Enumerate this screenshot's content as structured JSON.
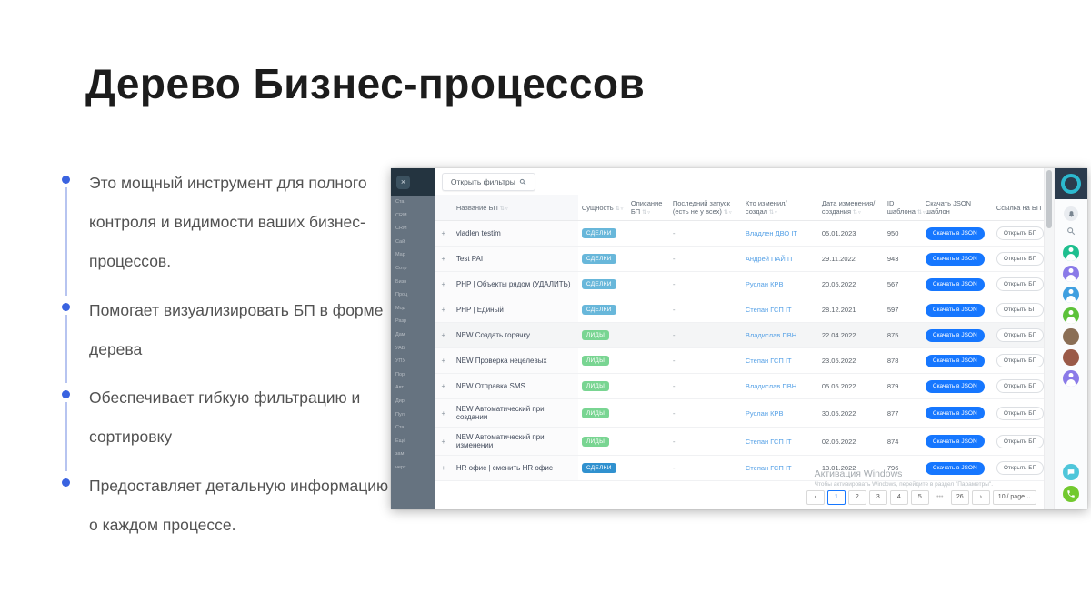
{
  "slide": {
    "title": "Дерево Бизнес-процессов",
    "accent_color": "#3a63e0",
    "bullets": [
      "Это мощный инструмент для полного контроля и видимости ваших бизнес-процессов.",
      "Помогает визуализировать БП в форме дерева",
      "Обеспечивает гибкую фильтрацию и сортировку",
      "Предоставляет детальную информацию о каждом процессе."
    ]
  },
  "app": {
    "filter_button": "Открыть фильтры",
    "icons": {
      "sort": "⇅",
      "filter": "▿",
      "page_size_caret": "⌄",
      "expand": "+",
      "app_menu": "×"
    },
    "sidebar_fragments": [
      "Ста",
      "CRM",
      "CRM",
      "Сай",
      "Мар",
      "Сотр",
      "Бизн",
      "Проц",
      "Мод",
      "Разр",
      "Дам",
      "УАБ",
      "УПУ",
      "Пор",
      "Авт",
      "Дир",
      "Пул",
      "Ста",
      "Ещё",
      "зам",
      "черт"
    ],
    "table": {
      "columns": [
        "Название БП",
        "Сущность",
        "Описание БП",
        "Последний запуск (есть не у всех)",
        "Кто изменил/ создал",
        "Дата изменения/ создания",
        "ID шаблона",
        "Скачать JSON шаблон",
        "Ссылка на БП"
      ],
      "download_label": "Скачать в JSON",
      "open_label": "Открыть БП",
      "badge_colors": {
        "deal": "#68b7da",
        "lead": "#79d592",
        "deal-dark": "#3091cf"
      },
      "rows": [
        {
          "name": "vladlen testim",
          "entity": "СДЕЛКИ",
          "type": "deal",
          "last_run": "-",
          "author": "Владлен ДВО IT",
          "date": "05.01.2023",
          "id": "950"
        },
        {
          "name": "Test PAI",
          "entity": "СДЕЛКИ",
          "type": "deal",
          "last_run": "-",
          "author": "Андрей ПАЙ IT",
          "date": "29.11.2022",
          "id": "943"
        },
        {
          "name": "PHP | Объекты рядом (УДАЛИТЬ)",
          "entity": "СДЕЛКИ",
          "type": "deal",
          "last_run": "-",
          "author": "Руслан КРВ",
          "date": "20.05.2022",
          "id": "567"
        },
        {
          "name": "PHP | Единый",
          "entity": "СДЕЛКИ",
          "type": "deal",
          "last_run": "-",
          "author": "Степан ГСП IT",
          "date": "28.12.2021",
          "id": "597"
        },
        {
          "name": "NEW Создать горячку",
          "entity": "ЛИДЫ",
          "type": "lead",
          "last_run": "-",
          "author": "Владислав ПВН",
          "date": "22.04.2022",
          "id": "875",
          "highlight": true
        },
        {
          "name": "NEW Проверка нецелевых",
          "entity": "ЛИДЫ",
          "type": "lead",
          "last_run": "-",
          "author": "Степан ГСП IT",
          "date": "23.05.2022",
          "id": "878"
        },
        {
          "name": "NEW Отправка SMS",
          "entity": "ЛИДЫ",
          "type": "lead",
          "last_run": "-",
          "author": "Владислав ПВН",
          "date": "05.05.2022",
          "id": "879"
        },
        {
          "name": "NEW Автоматический при создании",
          "entity": "ЛИДЫ",
          "type": "lead",
          "last_run": "-",
          "author": "Руслан КРВ",
          "date": "30.05.2022",
          "id": "877"
        },
        {
          "name": "NEW Автоматический при изменении",
          "entity": "ЛИДЫ",
          "type": "lead",
          "last_run": "-",
          "author": "Степан ГСП IT",
          "date": "02.06.2022",
          "id": "874"
        },
        {
          "name": "HR офис | сменить HR офис",
          "entity": "СДЕЛКИ",
          "type": "deal-dark",
          "last_run": "-",
          "author": "Степан ГСП IT",
          "date": "13.01.2022",
          "id": "796"
        }
      ]
    },
    "pagination": {
      "items": [
        {
          "label": "‹"
        },
        {
          "label": "1",
          "active": true
        },
        {
          "label": "2"
        },
        {
          "label": "3"
        },
        {
          "label": "4"
        },
        {
          "label": "5"
        },
        {
          "label": "•••",
          "dots": true
        },
        {
          "label": "26"
        },
        {
          "label": "›"
        }
      ],
      "page_size": "10 / page"
    },
    "watermark": {
      "line1": "Активация Windows",
      "line2": "Чтобы активировать Windows, перейдите в раздел \"Параметры\"."
    },
    "rail": {
      "avatars": [
        {
          "color": "#1fbf8f",
          "kind": "person"
        },
        {
          "color": "#8a7ae8",
          "kind": "person"
        },
        {
          "color": "#3f9fe0",
          "kind": "person"
        },
        {
          "color": "#5cc23a",
          "kind": "person"
        },
        {
          "color": "#8a6e55",
          "kind": "photo"
        },
        {
          "color": "#9a5a48",
          "kind": "photo"
        },
        {
          "color": "#8a7ae8",
          "kind": "person"
        }
      ]
    }
  }
}
